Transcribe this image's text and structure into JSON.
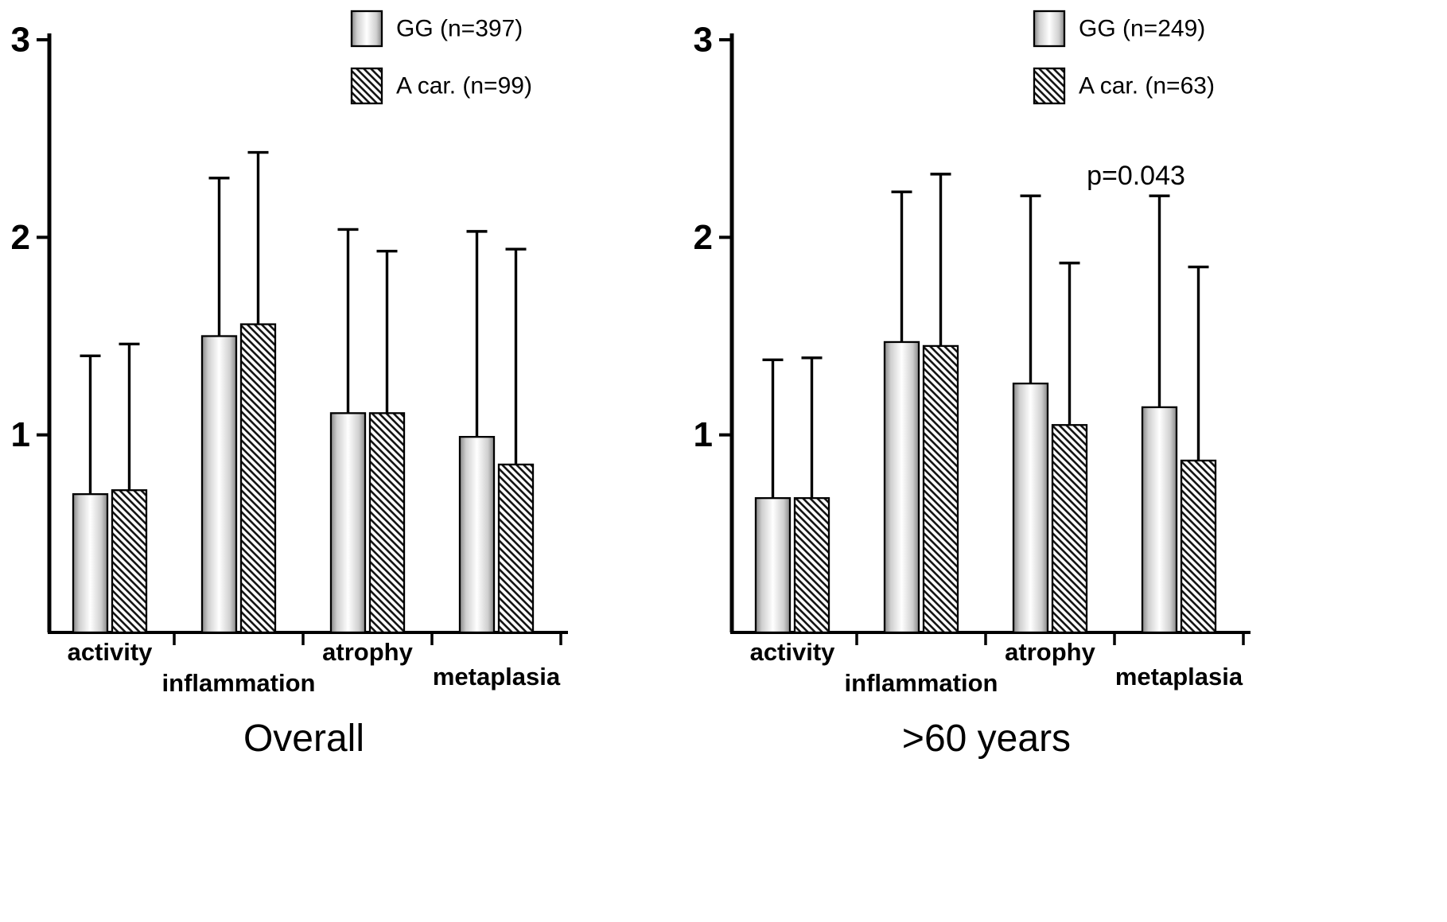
{
  "colors": {
    "background": "#ffffff",
    "axis": "#000000",
    "bar_outline": "#000000",
    "gradient_edge": "#888888",
    "gradient_center": "#ffffff",
    "hatch_line": "#151515",
    "text": "#000000"
  },
  "chart_data": [
    {
      "type": "bar",
      "title": "Overall",
      "categories": [
        "activity",
        "inflammation",
        "atrophy",
        "metaplasia"
      ],
      "series": [
        {
          "name": "GG (n=397)",
          "fill": "gradient",
          "values": [
            0.7,
            1.5,
            1.11,
            0.99
          ],
          "error_tops": [
            1.4,
            2.3,
            2.04,
            2.03
          ]
        },
        {
          "name": "A car. (n=99)",
          "fill": "hatch",
          "values": [
            0.72,
            1.56,
            1.11,
            0.85
          ],
          "error_tops": [
            1.46,
            2.43,
            1.93,
            1.94
          ]
        }
      ],
      "ylim": [
        0,
        3
      ],
      "yticks": [
        1,
        2,
        3
      ],
      "legend_position": "top-right-of-plot",
      "grid": false,
      "annotation": {
        "text": ""
      }
    },
    {
      "type": "bar",
      "title": ">60 years",
      "categories": [
        "activity",
        "inflammation",
        "atrophy",
        "metaplasia"
      ],
      "series": [
        {
          "name": "GG (n=249)",
          "fill": "gradient",
          "values": [
            0.68,
            1.47,
            1.26,
            1.14
          ],
          "error_tops": [
            1.38,
            2.23,
            2.21,
            2.21
          ]
        },
        {
          "name": "A car. (n=63)",
          "fill": "hatch",
          "values": [
            0.68,
            1.45,
            1.05,
            0.87
          ],
          "error_tops": [
            1.39,
            2.32,
            1.87,
            1.85
          ]
        }
      ],
      "ylim": [
        0,
        3
      ],
      "yticks": [
        1,
        2,
        3
      ],
      "legend_position": "top-right-of-plot",
      "grid": false,
      "annotation": {
        "text": "p=0.043",
        "over_category": "metaplasia"
      }
    }
  ]
}
